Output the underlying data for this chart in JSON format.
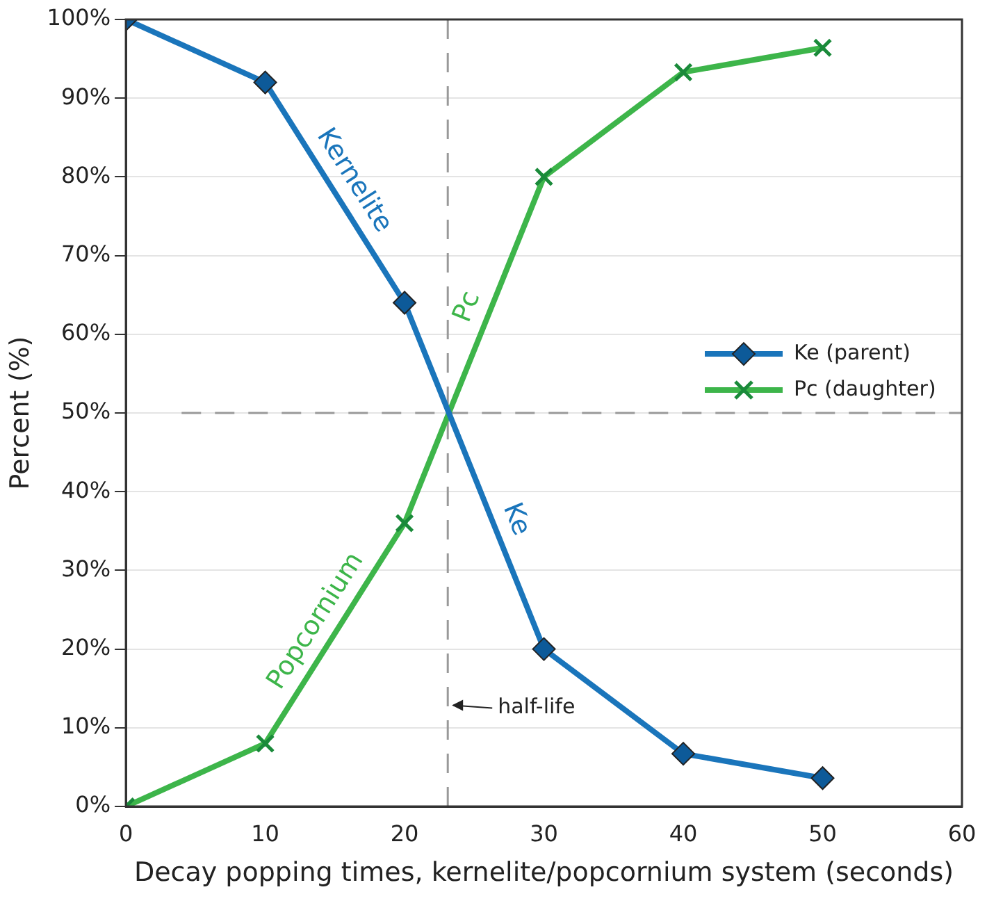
{
  "chart_data": {
    "type": "line",
    "xlabel": "Decay popping times, kernelite/popcornium system (seconds)",
    "ylabel": "Percent (%)",
    "x": [
      0,
      10,
      20,
      30,
      40,
      50
    ],
    "series": [
      {
        "name": "Ke (parent)",
        "color": "#1a75bb",
        "marker": "diamond",
        "values": [
          100,
          92,
          64,
          20,
          6.7,
          3.6
        ]
      },
      {
        "name": "Pc (daughter)",
        "color": "#3db54a",
        "marker": "cross",
        "values": [
          0,
          8,
          36,
          80,
          93.3,
          96.4
        ]
      }
    ],
    "xlim": [
      0,
      60
    ],
    "xticks": [
      0,
      10,
      20,
      30,
      40,
      50,
      60
    ],
    "ylim": [
      0,
      100
    ],
    "yticks": [
      {
        "value": 0,
        "label": "0%"
      },
      {
        "value": 10,
        "label": "10%"
      },
      {
        "value": 20,
        "label": "20%"
      },
      {
        "value": 30,
        "label": "30%"
      },
      {
        "value": 40,
        "label": "40%"
      },
      {
        "value": 50,
        "label": "50%"
      },
      {
        "value": 60,
        "label": "60%"
      },
      {
        "value": 70,
        "label": "70%"
      },
      {
        "value": 80,
        "label": "80%"
      },
      {
        "value": 90,
        "label": "90%"
      },
      {
        "value": 100,
        "label": "100%"
      }
    ],
    "grid": "y",
    "legend": "right",
    "line_style": "solid",
    "ref_lines": [
      {
        "axis": "x",
        "value": 23.1,
        "label": "half-life",
        "color": "#999999",
        "line_style": "dashed"
      },
      {
        "axis": "y",
        "value": 50,
        "color": "#999999",
        "line_style": "dashed"
      }
    ],
    "annotations": [
      {
        "text": "Kernelite",
        "x": 15,
        "y": 78
      },
      {
        "text": "Pc",
        "x": 26,
        "y": 62.4
      },
      {
        "text": "Ke",
        "x": 26.5,
        "y": 35.4
      },
      {
        "text": "Popcornium",
        "x": 15,
        "y": 22
      }
    ]
  }
}
